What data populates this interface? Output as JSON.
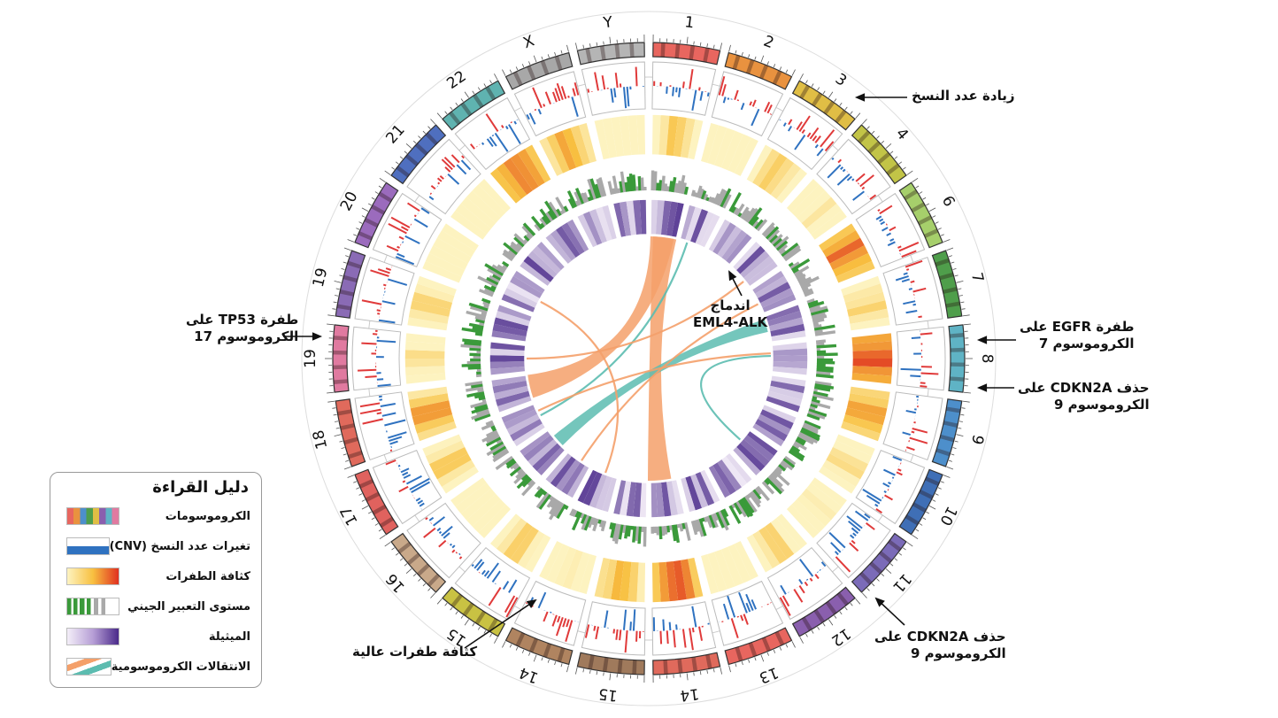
{
  "chromosomes": [
    {
      "label": "1",
      "color": "#e8665f"
    },
    {
      "label": "2",
      "color": "#e9923f"
    },
    {
      "label": "3",
      "color": "#e0be45"
    },
    {
      "label": "4",
      "color": "#c2c447"
    },
    {
      "label": "6",
      "color": "#a6cf6b"
    },
    {
      "label": "7",
      "color": "#4f9e4b"
    },
    {
      "label": "8",
      "color": "#5fb3c5"
    },
    {
      "label": "9",
      "color": "#4d8fcb"
    },
    {
      "label": "10",
      "color": "#3f6fb6"
    },
    {
      "label": "11",
      "color": "#7b6bb8"
    },
    {
      "label": "12",
      "color": "#8a5fae"
    },
    {
      "label": "13",
      "color": "#e8665f"
    },
    {
      "label": "14",
      "color": "#e06a5c"
    },
    {
      "label": "15",
      "color": "#a07a5c"
    },
    {
      "label": "14",
      "color": "#b08460"
    },
    {
      "label": "15",
      "color": "#c9c243"
    },
    {
      "label": "16",
      "color": "#c9a98a"
    },
    {
      "label": "17",
      "color": "#e0625e"
    },
    {
      "label": "18",
      "color": "#e06a5c"
    },
    {
      "label": "19",
      "color": "#e07aa0"
    },
    {
      "label": "19",
      "color": "#8a6bb5"
    },
    {
      "label": "20",
      "color": "#9b6bbd"
    },
    {
      "label": "21",
      "color": "#4f6fbf"
    },
    {
      "label": "22",
      "color": "#5fb3b0"
    },
    {
      "label": "X",
      "color": "#a8a8a8"
    },
    {
      "label": "Y",
      "color": "#b5b5b5"
    }
  ],
  "annotations": {
    "copy_gain": "زيادة عدد النسخ",
    "egfr": [
      "طفرة EGFR على",
      "الكروموسوم 7"
    ],
    "cdkn2a_a": [
      "حذف CDKN2A على",
      "الكروموسوم 9"
    ],
    "cdkn2a_b": [
      "حذف CDKN2A على",
      "الكروموسوم 9"
    ],
    "tp53": [
      "طفرة TP53 على",
      "الكروموسوم 17"
    ],
    "high_mut": "كثافة طفرات عالية",
    "fusion": [
      "اندماج",
      "EML4-ALK"
    ]
  },
  "legend": {
    "title": "دليل القراءة",
    "items": [
      {
        "label": "الكروموسومات"
      },
      {
        "label": "تغيرات عدد النسخ (CNV)"
      },
      {
        "label": "كثافة الطفرات"
      },
      {
        "label": "مستوى التعبير الجيني"
      },
      {
        "label": "الميثيلة"
      },
      {
        "label": "الانتقالات الكروموسومية"
      }
    ]
  },
  "colors": {
    "gain": "#e03a3a",
    "loss": "#2f72c0",
    "expression": "#3a9a3a",
    "expression_low": "#a9a9a9",
    "mut_low": "#fdf0b0",
    "mut_high": "#e03020",
    "methyl_low": "#efe8f5",
    "methyl_high": "#4a2a8a",
    "link_orange": "#f4a06a",
    "link_teal": "#5cbcb0"
  }
}
